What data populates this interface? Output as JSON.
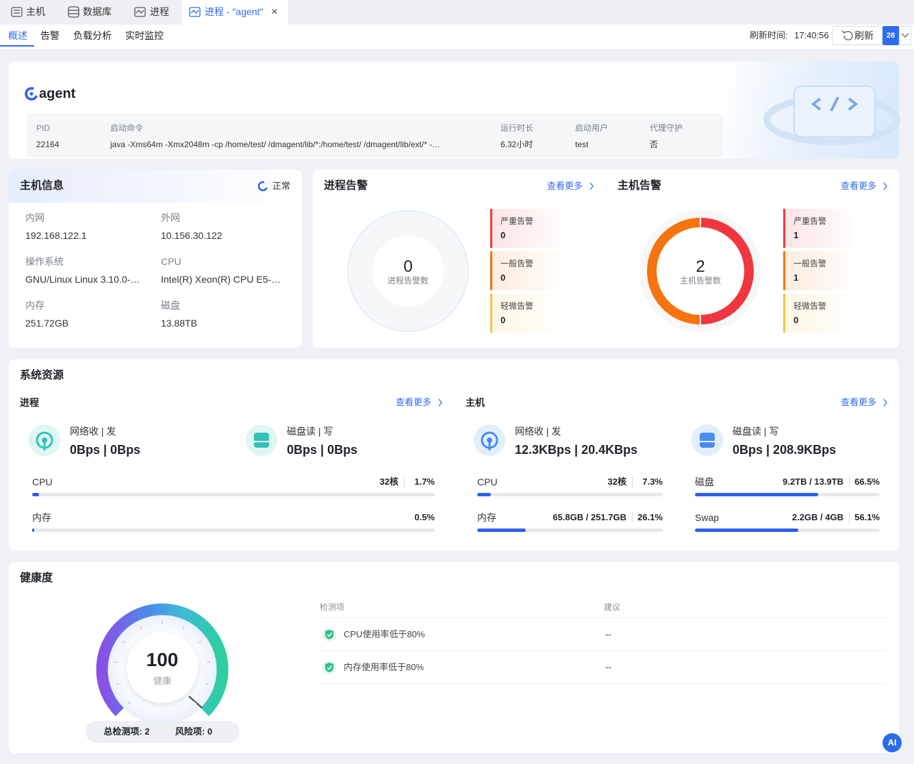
{
  "tabs": [
    "主机",
    "数据库",
    "进程",
    "进程 - \"agent\""
  ],
  "subtabs": [
    "概述",
    "告警",
    "负载分析",
    "实时监控"
  ],
  "toolbar": {
    "refresh_time_label": "刷新时间:",
    "refresh_time": "17:40:56",
    "refresh": "刷新",
    "interval": "28"
  },
  "agent": {
    "name": "agent",
    "fields": [
      {
        "label": "PID",
        "value": "22164"
      },
      {
        "label": "启动命令",
        "value": "java -Xms64m -Xmx2048m -cp /home/test/    /dmagent/lib/*:/home/test/    /dmagent/lib/ext/* -…"
      },
      {
        "label": "运行时长",
        "value": "6.32小时"
      },
      {
        "label": "启动用户",
        "value": "test"
      },
      {
        "label": "代理守护",
        "value": "否"
      }
    ]
  },
  "host_info": {
    "title": "主机信息",
    "status": "正常",
    "fields": [
      {
        "label": "内网",
        "value": "192.168.122.1"
      },
      {
        "label": "外网",
        "value": "10.156.30.122"
      },
      {
        "label": "操作系统",
        "value": "GNU/Linux Linux 3.10.0-…"
      },
      {
        "label": "CPU",
        "value": "Intel(R) Xeon(R) CPU E5-…"
      },
      {
        "label": "内存",
        "value": "251.72GB"
      },
      {
        "label": "磁盘",
        "value": "13.88TB"
      }
    ]
  },
  "alerts": {
    "level_colors": [
      "#f0373f",
      "#f7730e",
      "#f5c343"
    ],
    "panels": [
      {
        "title": "进程告警",
        "more": "查看更多",
        "total": 0,
        "total_label": "进程告警数",
        "levels": [
          {
            "label": "严重告警",
            "value": 0
          },
          {
            "label": "一般告警",
            "value": 0
          },
          {
            "label": "轻微告警",
            "value": 0
          }
        ]
      },
      {
        "title": "主机告警",
        "more": "查看更多",
        "total": 2,
        "total_label": "主机告警数",
        "levels": [
          {
            "label": "严重告警",
            "value": 1
          },
          {
            "label": "一般告警",
            "value": 1
          },
          {
            "label": "轻微告警",
            "value": 0
          }
        ]
      }
    ]
  },
  "resources": {
    "title": "系统资源",
    "bar_color": "#2f5ef0",
    "groups": [
      {
        "title": "进程",
        "more": "查看更多",
        "io": [
          {
            "label": "网络收 | 发",
            "value": "0Bps | 0Bps"
          },
          {
            "label": "磁盘读 | 写",
            "value": "0Bps | 0Bps"
          }
        ],
        "bars": [
          {
            "label": "CPU",
            "detail": "32核",
            "usage": 1.7,
            "usage_label": "1.7%"
          },
          {
            "label": "内存",
            "usage": 0.5,
            "usage_label": "0.5%"
          }
        ]
      },
      {
        "title": "主机",
        "more": "查看更多",
        "io": [
          {
            "label": "网络收 | 发",
            "value": "12.3KBps | 20.4KBps"
          },
          {
            "label": "磁盘读 | 写",
            "value": "0Bps | 208.9KBps"
          }
        ],
        "bars": [
          {
            "label": "CPU",
            "detail": "32核",
            "usage": 7.3,
            "usage_label": "7.3%"
          },
          {
            "label": "内存",
            "detail": "65.8GB / 251.7GB",
            "usage": 26.1,
            "usage_label": "26.1%"
          },
          {
            "label": "磁盘",
            "detail": "9.2TB / 13.9TB",
            "usage": 66.5,
            "usage_label": "66.5%"
          },
          {
            "label": "Swap",
            "detail": "2.2GB / 4GB",
            "usage": 56.1,
            "usage_label": "56.1%"
          }
        ]
      }
    ]
  },
  "health": {
    "title": "健康度",
    "score": 100,
    "score_label": "健康",
    "total_checks": "总检测项: 2",
    "risks": "风险项: 0",
    "table": {
      "headers": [
        "检测项",
        "建议"
      ],
      "rows": [
        [
          "CPU使用率低于80%",
          "--"
        ],
        [
          "内存使用率低于80%",
          "--"
        ]
      ]
    }
  },
  "ai_button": "AI"
}
